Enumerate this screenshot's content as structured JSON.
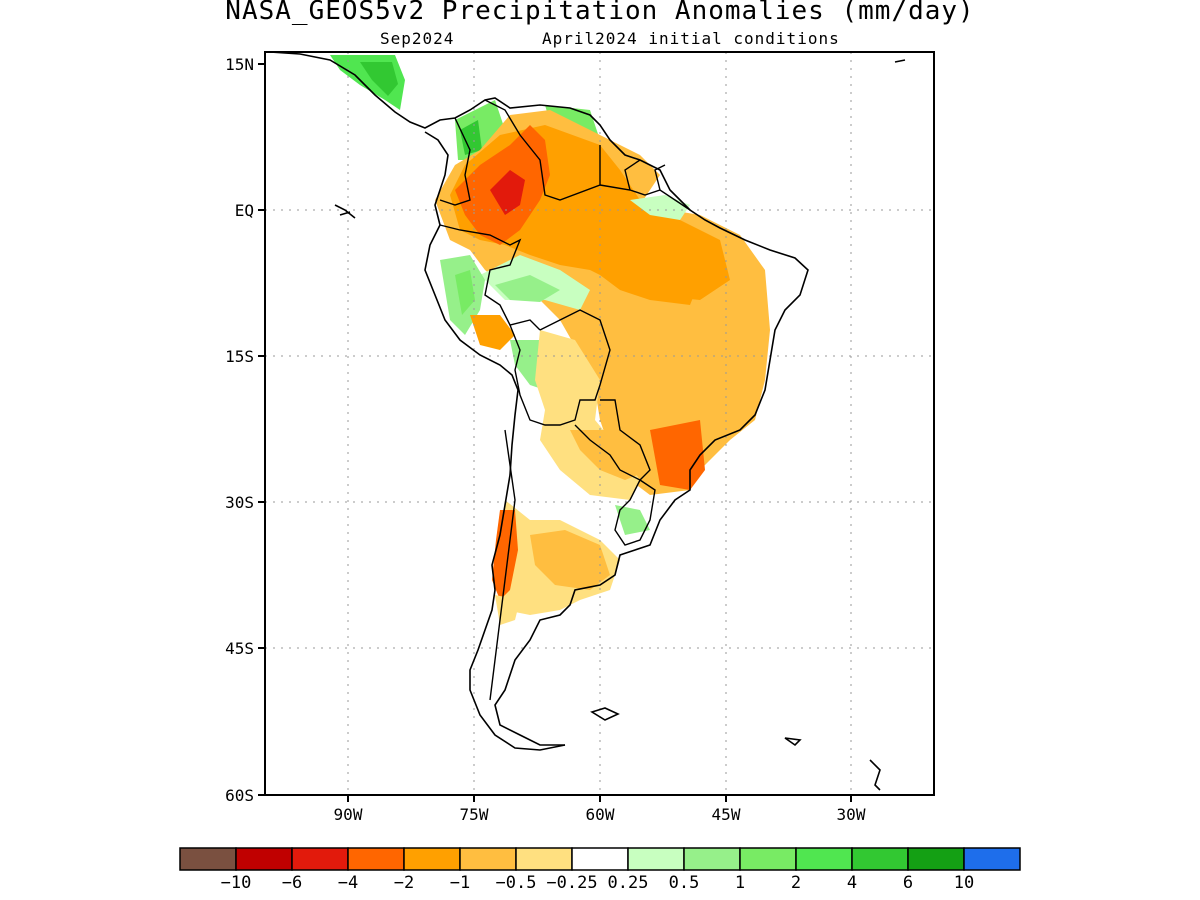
{
  "title": "NASA_GEOS5v2 Precipitation Anomalies (mm/day)",
  "subtitle_left": "Sep2024",
  "subtitle_right": "April2024 initial conditions",
  "lat_labels": [
    "15N",
    "EQ",
    "15S",
    "30S",
    "45S",
    "60S"
  ],
  "lon_labels": [
    "90W",
    "75W",
    "60W",
    "45W",
    "30W"
  ],
  "colorbar": {
    "labels": [
      "−10",
      "−6",
      "−4",
      "−2",
      "−1",
      "−0.5",
      "−0.25",
      "0.25",
      "0.5",
      "1",
      "2",
      "4",
      "6",
      "10"
    ],
    "colors": [
      "#7a5040",
      "#c00000",
      "#e21a0c",
      "#ff6600",
      "#ffa000",
      "#ffbe40",
      "#ffe080",
      "#ffffff",
      "#c8ffc0",
      "#96f08a",
      "#78eb64",
      "#50e650",
      "#32c832",
      "#14a014",
      "#1e6eeb"
    ]
  },
  "colors": {
    "land_neutral": "#ffffff",
    "coast": "#000000"
  }
}
